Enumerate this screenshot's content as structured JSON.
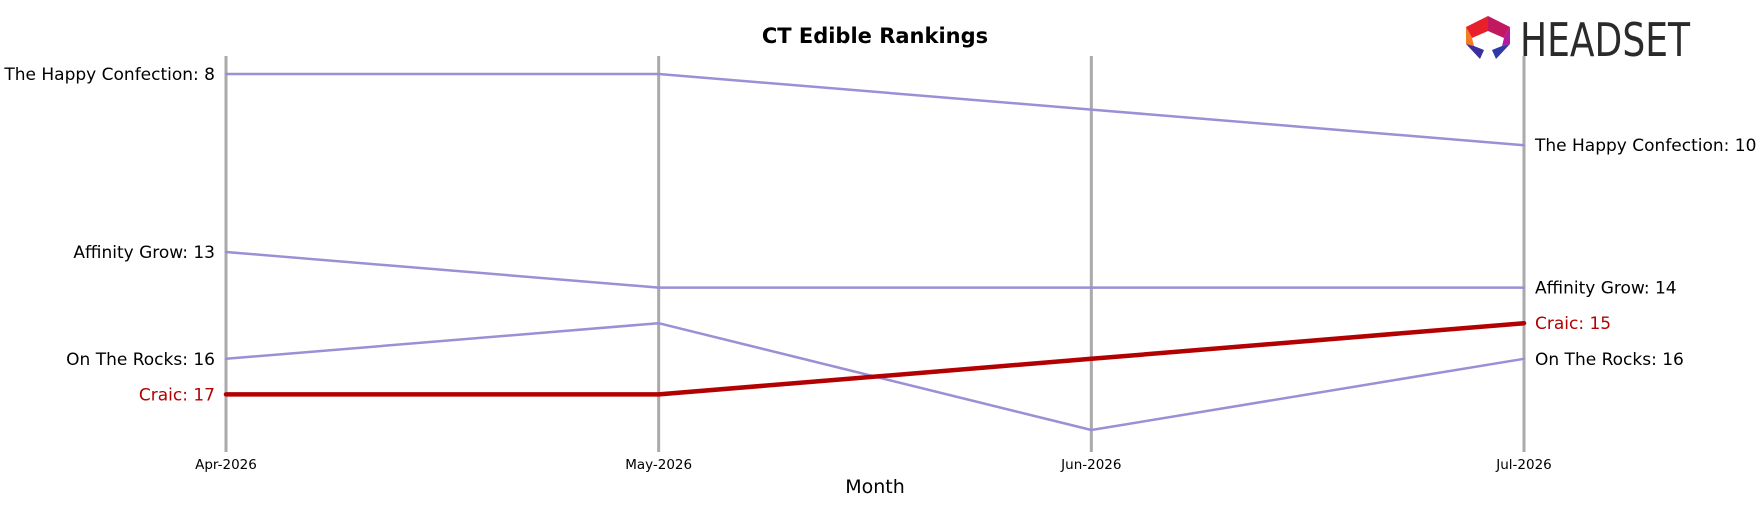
{
  "chart_data": {
    "type": "line",
    "title": "CT Edible Rankings",
    "xlabel": "Month",
    "ylabel": "",
    "x": [
      "Apr-2026",
      "May-2026",
      "Jun-2026",
      "Jul-2026"
    ],
    "ylim": [
      8,
      18
    ],
    "y_inverted": true,
    "grid": false,
    "series": [
      {
        "name": "The Happy Confection",
        "values": [
          8,
          8,
          9,
          10
        ],
        "color": "#9b8fd6",
        "highlight": false
      },
      {
        "name": "Affinity Grow",
        "values": [
          13,
          14,
          14,
          14
        ],
        "color": "#9b8fd6",
        "highlight": false
      },
      {
        "name": "On The Rocks",
        "values": [
          16,
          15,
          18,
          16
        ],
        "color": "#9b8fd6",
        "highlight": false
      },
      {
        "name": "Craic",
        "values": [
          17,
          17,
          16,
          15
        ],
        "color": "#b30000",
        "highlight": true
      }
    ],
    "start_labels": [
      {
        "series": "The Happy Confection",
        "text": "The Happy Confection: 8"
      },
      {
        "series": "Affinity Grow",
        "text": "Affinity Grow: 13"
      },
      {
        "series": "On The Rocks",
        "text": "On The Rocks: 16"
      },
      {
        "series": "Craic",
        "text": "Craic: 17"
      }
    ],
    "end_labels": [
      {
        "series": "The Happy Confection",
        "text": "The Happy Confection: 10"
      },
      {
        "series": "Affinity Grow",
        "text": "Affinity Grow: 14"
      },
      {
        "series": "Craic",
        "text": "Craic: 15"
      },
      {
        "series": "On The Rocks",
        "text": "On The Rocks: 16"
      }
    ]
  },
  "logo": {
    "text": "HEADSET",
    "colors": [
      "#e8202a",
      "#f47b20",
      "#b5179e",
      "#3a2f9b"
    ]
  },
  "colors": {
    "vertical_line": "#aaaaaa",
    "text": "#000000",
    "highlight_text": "#b30000"
  }
}
